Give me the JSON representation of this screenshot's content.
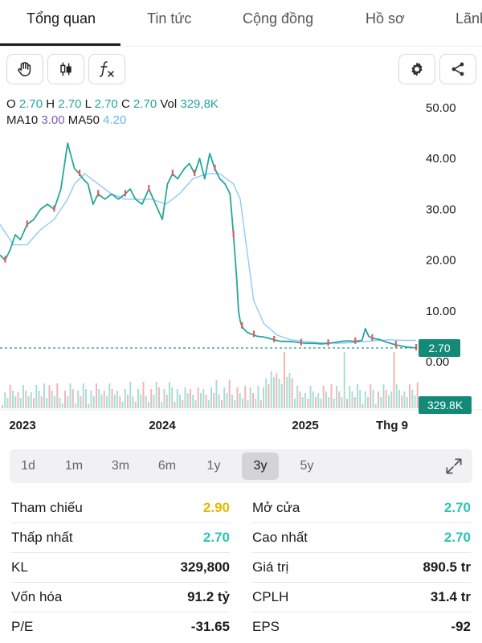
{
  "tabs": [
    {
      "label": "Tổng quan",
      "active": true
    },
    {
      "label": "Tin tức"
    },
    {
      "label": "Cộng đồng"
    },
    {
      "label": "Hồ sơ"
    },
    {
      "label": "Lãnh"
    }
  ],
  "toolbar": {
    "left_icons": [
      "hand-icon",
      "candlestick-icon",
      "function-icon"
    ],
    "right_icons": [
      "gear-icon",
      "share-icon"
    ]
  },
  "ohlc": {
    "o_label": "O",
    "o": "2.70",
    "h_label": "H",
    "h": "2.70",
    "l_label": "L",
    "l": "2.70",
    "c_label": "C",
    "c": "2.70",
    "vol_label": "Vol",
    "vol": "329,8K",
    "ma10_label": "MA10",
    "ma10": "3.00",
    "ma50_label": "MA50",
    "ma50": "4.20"
  },
  "chart_data": {
    "type": "line",
    "x_labels": [
      "2023",
      "2024",
      "2025",
      "Thg 9"
    ],
    "y_ticks": [
      "50.00",
      "40.00",
      "30.00",
      "20.00",
      "10.00",
      "0.00"
    ],
    "ylim": [
      0,
      50
    ],
    "last_price": "2.70",
    "last_volume": "329.8K",
    "series": [
      {
        "name": "Price",
        "color": "#26a69a",
        "x": [
          0,
          3,
          6,
          9,
          12,
          16,
          20,
          24,
          28,
          32,
          36,
          40,
          44,
          47,
          49,
          52,
          55,
          58,
          62,
          66,
          70,
          74,
          77,
          80,
          84,
          88,
          92,
          96,
          99,
          102,
          105,
          109,
          112,
          115,
          118,
          121,
          124,
          127,
          130,
          133,
          136,
          138,
          140,
          141,
          142,
          143,
          144,
          146,
          148,
          150,
          152,
          155,
          158,
          162,
          166,
          170,
          174,
          178,
          182,
          186,
          190,
          194,
          198,
          202,
          206,
          210,
          214,
          216,
          218,
          220,
          224,
          228,
          231,
          234,
          237,
          240,
          243,
          246
        ],
        "values": [
          21,
          20,
          22,
          25,
          24,
          27,
          28,
          30,
          31,
          30,
          34,
          43,
          38,
          37,
          36,
          35,
          31,
          33,
          32,
          33,
          32,
          33,
          34,
          32,
          31,
          34,
          31,
          28,
          35,
          37,
          36,
          38,
          39,
          37,
          40,
          36,
          41,
          38,
          36,
          35,
          33,
          25,
          16,
          10,
          8,
          7,
          6.5,
          5.8,
          5.5,
          5.3,
          5.0,
          4.9,
          4.7,
          4.3,
          4.0,
          4.0,
          3.9,
          3.7,
          3.6,
          3.6,
          3.5,
          3.6,
          3.8,
          4.0,
          4.1,
          4.0,
          4.2,
          6.5,
          5.0,
          4.6,
          4.4,
          3.9,
          3.6,
          3.3,
          3.1,
          2.9,
          2.8,
          2.7
        ]
      },
      {
        "name": "MA50",
        "color": "#90caf9",
        "x": [
          0,
          8,
          16,
          24,
          32,
          40,
          44,
          50,
          58,
          66,
          74,
          82,
          90,
          98,
          106,
          114,
          122,
          130,
          134,
          138,
          142,
          146,
          150,
          156,
          164,
          172,
          180,
          190,
          200,
          210,
          220,
          230,
          240,
          246
        ],
        "values": [
          27,
          23,
          23,
          26,
          28,
          32,
          35,
          37,
          35,
          33,
          32,
          32,
          32,
          31,
          33,
          36,
          37,
          37,
          36,
          35,
          32,
          22,
          12,
          7.5,
          5.2,
          4.3,
          4.0,
          3.7,
          3.6,
          3.8,
          4.1,
          4.3,
          4.2,
          4.2
        ]
      }
    ]
  },
  "ranges": [
    "1d",
    "1m",
    "3m",
    "6m",
    "1y",
    "3y",
    "5y"
  ],
  "active_range": "3y",
  "stats": {
    "left": [
      {
        "label": "Tham chiếu",
        "value": "2.90",
        "color": "yellow"
      },
      {
        "label": "Thấp nhất",
        "value": "2.70",
        "color": "teal"
      },
      {
        "label": "KL",
        "value": "329,800",
        "color": "dark"
      },
      {
        "label": "Vốn hóa",
        "value": "91.2 tỷ",
        "color": "dark"
      },
      {
        "label": "P/E",
        "value": "-31.65",
        "color": "dark"
      }
    ],
    "right": [
      {
        "label": "Mở cửa",
        "value": "2.70",
        "color": "teal"
      },
      {
        "label": "Cao nhất",
        "value": "2.70",
        "color": "teal"
      },
      {
        "label": "Giá trị",
        "value": "890.5 tr",
        "color": "dark"
      },
      {
        "label": "CPLH",
        "value": "31.4 tr",
        "color": "dark"
      },
      {
        "label": "EPS",
        "value": "-92",
        "color": "dark"
      }
    ]
  }
}
